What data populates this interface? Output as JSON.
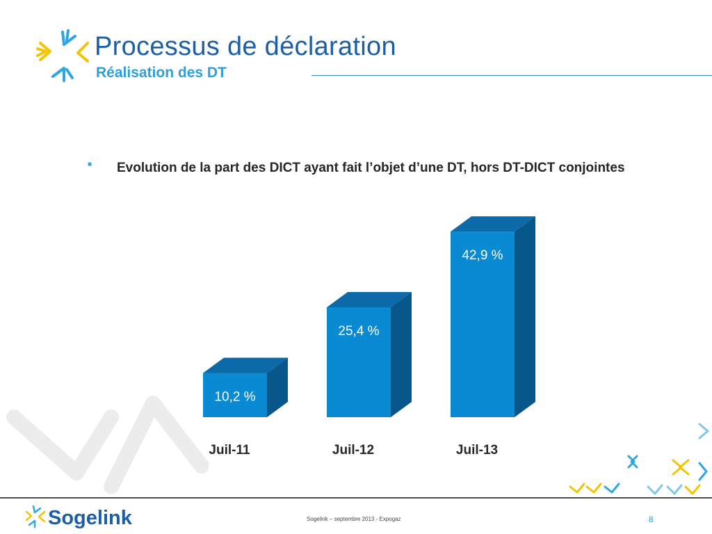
{
  "header": {
    "title": "Processus de déclaration",
    "subtitle": "Réalisation des DT"
  },
  "bullet": {
    "text": "Evolution de la part des DICT ayant fait l’objet d’une DT, hors DT-DICT conjointes"
  },
  "chart_data": {
    "type": "bar",
    "categories": [
      "Juil-11",
      "Juil-12",
      "Juil-13"
    ],
    "values": [
      10.2,
      25.4,
      42.9
    ],
    "value_labels": [
      "10,2 %",
      "25,4 %",
      "42,9 %"
    ],
    "ylim": [
      0,
      45
    ],
    "style": "3d",
    "grid": false,
    "colors": {
      "front": "#0a8ad3",
      "top": "#0d6aa8",
      "side": "#07578a"
    }
  },
  "footer": {
    "brand": "Sogelink",
    "text": "Sogelink – septembre 2013 - Expogaz",
    "page": "8"
  },
  "colors": {
    "title": "#1b5fa8",
    "subtitle": "#2e9fd8",
    "logo_yellow": "#f5c400",
    "logo_blue": "#2ea6e2"
  }
}
